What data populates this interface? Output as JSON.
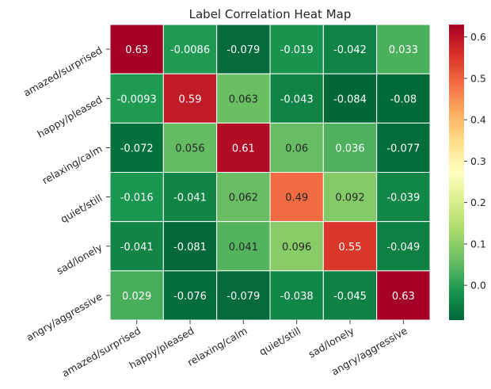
{
  "chart_data": {
    "type": "heatmap",
    "title": "Label Correlation Heat Map",
    "xlabel": "",
    "ylabel": "",
    "rows": [
      "amazed/surprised",
      "happy/pleased",
      "relaxing/calm",
      "quiet/still",
      "sad/lonely",
      "angry/aggressive"
    ],
    "columns": [
      "amazed/surprised",
      "happy/pleased",
      "relaxing/calm",
      "quiet/still",
      "sad/lonely",
      "angry/aggressive"
    ],
    "values": [
      [
        0.63,
        -0.0086,
        -0.079,
        -0.019,
        -0.042,
        0.033
      ],
      [
        -0.0093,
        0.59,
        0.063,
        -0.043,
        -0.084,
        -0.08
      ],
      [
        -0.072,
        0.056,
        0.61,
        0.06,
        0.036,
        -0.077
      ],
      [
        -0.016,
        -0.041,
        0.062,
        0.49,
        0.092,
        -0.039
      ],
      [
        -0.041,
        -0.081,
        0.041,
        0.096,
        0.55,
        -0.049
      ],
      [
        0.029,
        -0.076,
        -0.079,
        -0.038,
        -0.045,
        0.63
      ]
    ],
    "annotations": [
      [
        "0.63",
        "-0.0086",
        "-0.079",
        "-0.019",
        "-0.042",
        "0.033"
      ],
      [
        "-0.0093",
        "0.59",
        "0.063",
        "-0.043",
        "-0.084",
        "-0.08"
      ],
      [
        "-0.072",
        "0.056",
        "0.61",
        "0.06",
        "0.036",
        "-0.077"
      ],
      [
        "-0.016",
        "-0.041",
        "0.062",
        "0.49",
        "0.092",
        "-0.039"
      ],
      [
        "-0.041",
        "-0.081",
        "0.041",
        "0.096",
        "0.55",
        "-0.049"
      ],
      [
        "0.029",
        "-0.076",
        "-0.079",
        "-0.038",
        "-0.045",
        "0.63"
      ]
    ],
    "colormap": "RdYlGn_r",
    "vmin": -0.084,
    "vmax": 0.63,
    "colorbar": {
      "ticks": [
        0.0,
        0.1,
        0.2,
        0.3,
        0.4,
        0.5,
        0.6
      ],
      "tick_labels": [
        "0.0",
        "0.1",
        "0.2",
        "0.3",
        "0.4",
        "0.5",
        "0.6"
      ]
    },
    "cell_border_color": "#ffffff",
    "grid": false,
    "legend": "colorbar-right"
  }
}
